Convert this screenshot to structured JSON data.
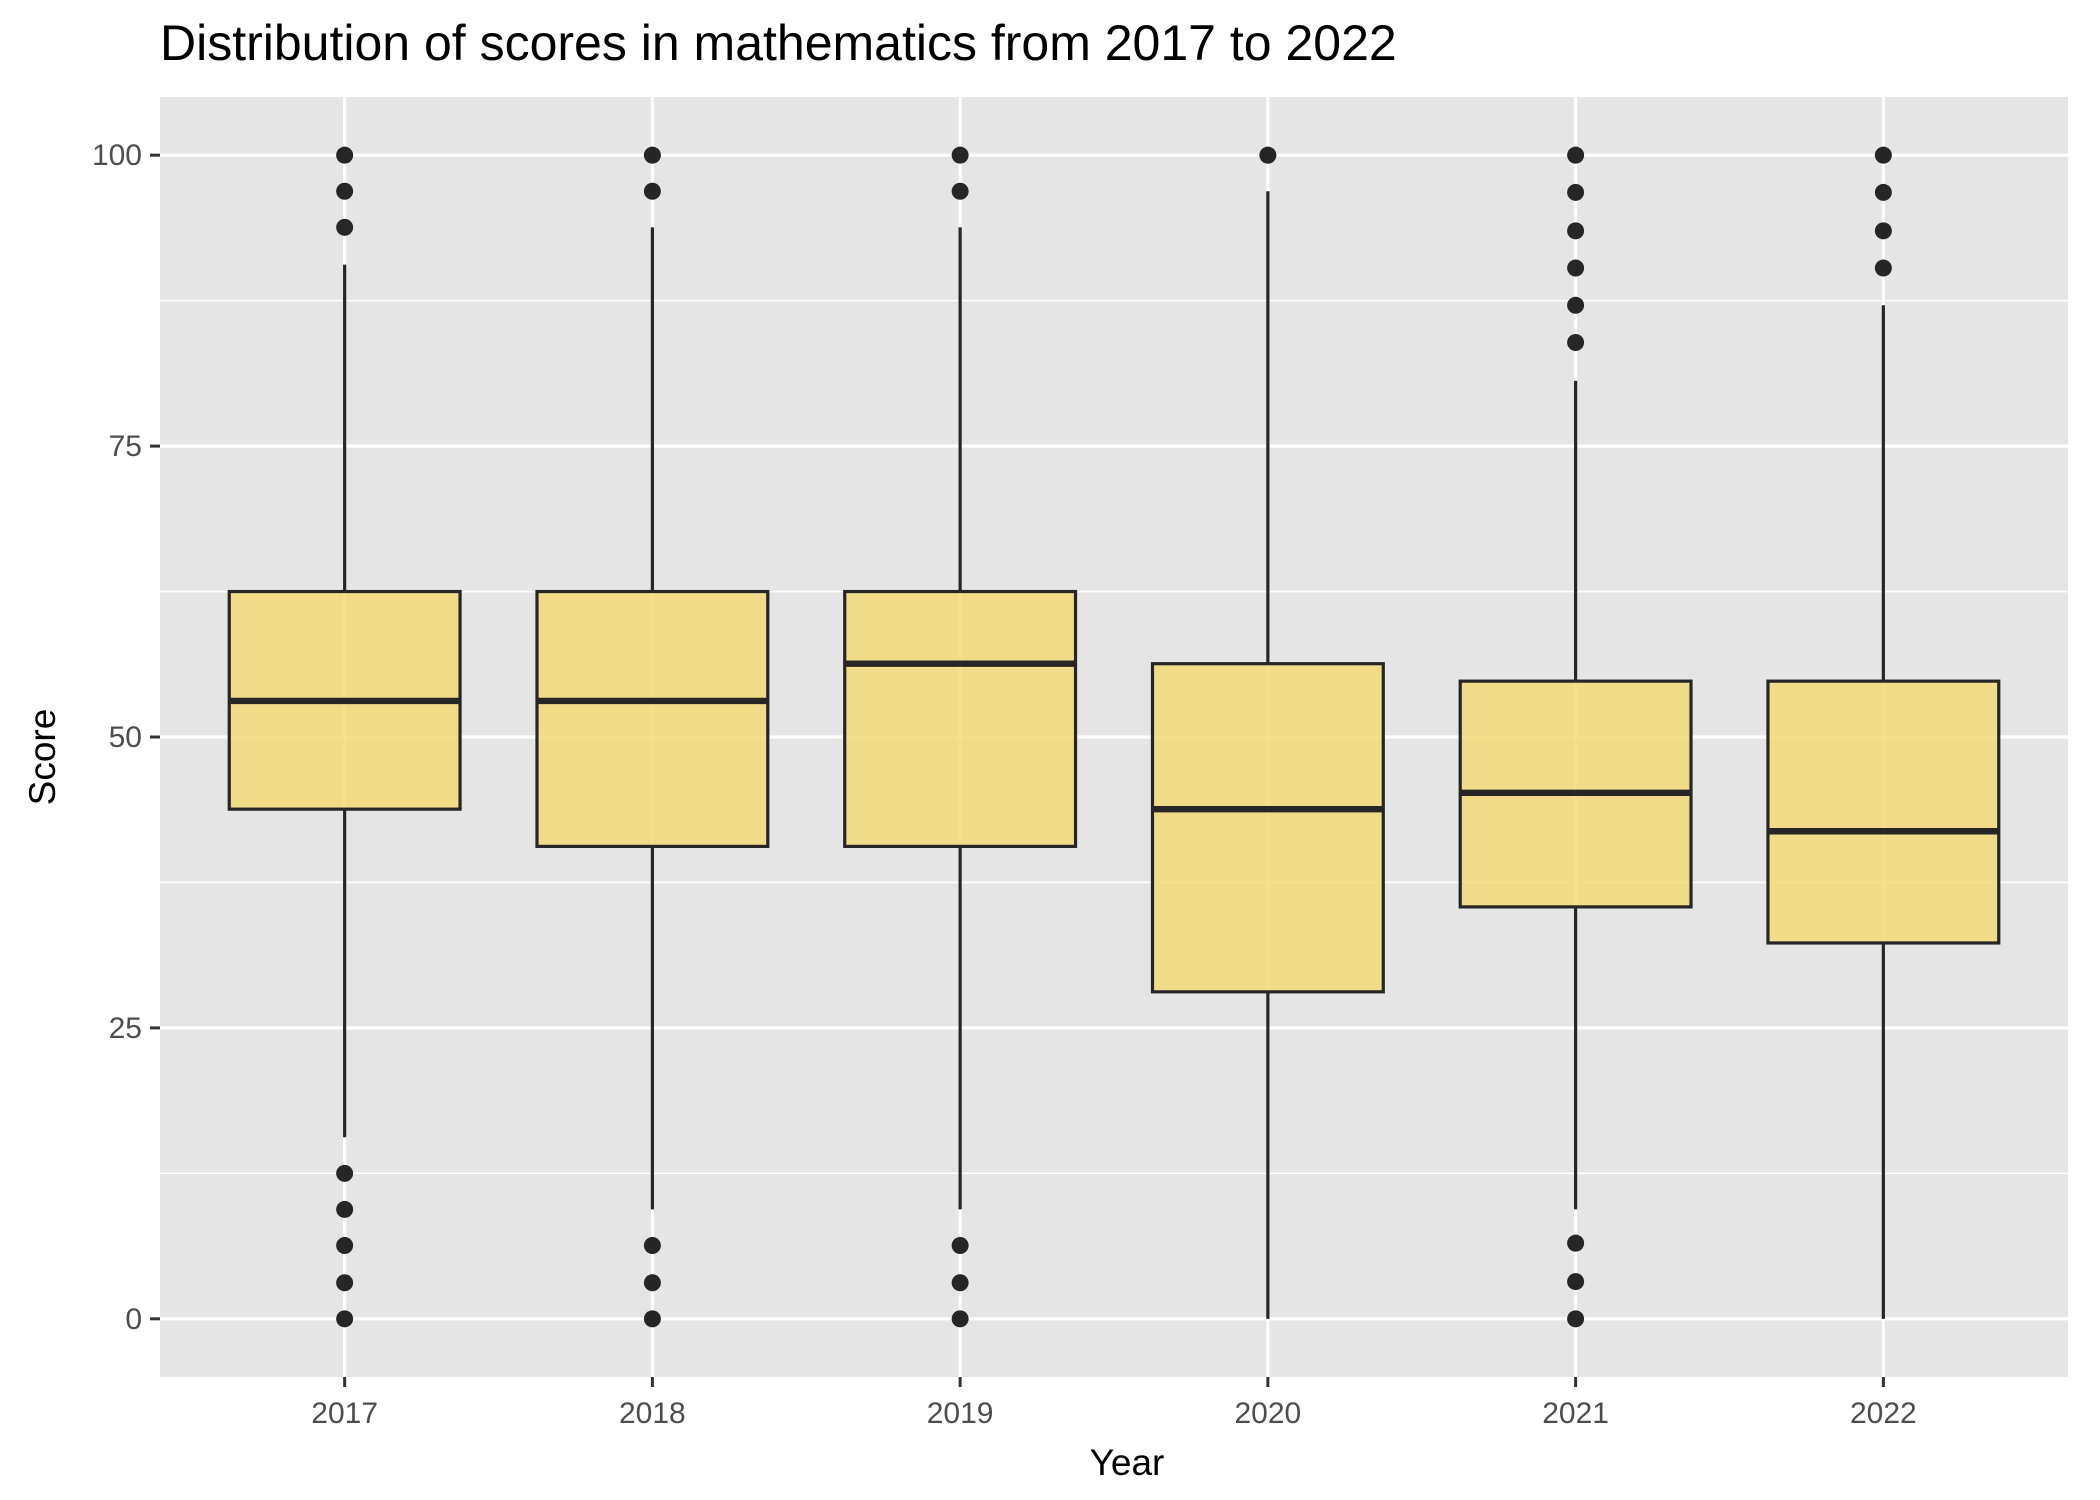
{
  "chart_data": {
    "type": "box",
    "title": "Distribution of scores in mathematics from 2017 to 2022",
    "xlabel": "Year",
    "ylabel": "Score",
    "ylim": [
      -5,
      105
    ],
    "yticks": [
      0,
      25,
      50,
      75,
      100
    ],
    "categories": [
      "2017",
      "2018",
      "2019",
      "2020",
      "2021",
      "2022"
    ],
    "boxes": [
      {
        "category": "2017",
        "whisker_low": 15.6,
        "q1": 43.8,
        "median": 53.1,
        "q3": 62.5,
        "whisker_high": 90.6,
        "outliers": [
          0,
          3.1,
          6.3,
          9.4,
          12.5,
          93.8,
          96.9,
          100
        ]
      },
      {
        "category": "2018",
        "whisker_low": 9.4,
        "q1": 40.6,
        "median": 53.1,
        "q3": 62.5,
        "whisker_high": 93.8,
        "outliers": [
          0,
          3.1,
          6.3,
          96.9,
          100
        ]
      },
      {
        "category": "2019",
        "whisker_low": 9.4,
        "q1": 40.6,
        "median": 56.3,
        "q3": 62.5,
        "whisker_high": 93.8,
        "outliers": [
          0,
          3.1,
          6.3,
          96.9,
          100
        ]
      },
      {
        "category": "2020",
        "whisker_low": 0,
        "q1": 28.1,
        "median": 43.8,
        "q3": 56.3,
        "whisker_high": 96.9,
        "outliers": [
          100
        ]
      },
      {
        "category": "2021",
        "whisker_low": 9.4,
        "q1": 35.4,
        "median": 45.2,
        "q3": 54.8,
        "whisker_high": 80.6,
        "outliers": [
          0,
          3.2,
          6.5,
          83.9,
          87.1,
          90.3,
          93.5,
          96.8,
          100
        ]
      },
      {
        "category": "2022",
        "whisker_low": 0,
        "q1": 32.3,
        "median": 41.9,
        "q3": 54.8,
        "whisker_high": 87.1,
        "outliers": [
          90.3,
          93.5,
          96.8,
          100
        ]
      }
    ],
    "grid": true,
    "legend": "none",
    "colors": {
      "panel": "#E5E5E5",
      "gridline": "#FFFFFF",
      "box_fill": "#F2DA78",
      "box_stroke": "#262626",
      "outlier": "#262626",
      "tick_label": "#4D4D4D",
      "tick_mark": "#333333"
    }
  }
}
